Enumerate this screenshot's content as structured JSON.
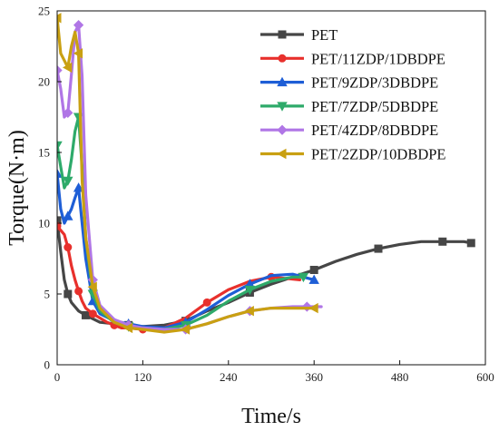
{
  "chart_data": {
    "type": "line",
    "xlabel": "Time/s",
    "ylabel": "Torque(N·m)",
    "xlim": [
      0,
      600
    ],
    "ylim": [
      0,
      25
    ],
    "xticks": [
      0,
      120,
      240,
      360,
      480,
      600
    ],
    "yticks": [
      0,
      5,
      10,
      15,
      20,
      25
    ],
    "grid": false,
    "legend": "top-right",
    "series": [
      {
        "name": "PET",
        "color": "#464646",
        "marker": "square",
        "x": [
          0,
          5,
          10,
          15,
          20,
          30,
          40,
          60,
          80,
          100,
          120,
          150,
          180,
          210,
          240,
          270,
          300,
          330,
          360,
          390,
          420,
          450,
          480,
          510,
          540,
          560,
          570,
          580
        ],
        "y": [
          10.2,
          8.0,
          6.0,
          5.0,
          4.4,
          3.8,
          3.5,
          3.0,
          2.9,
          2.8,
          2.7,
          2.8,
          3.1,
          3.8,
          4.4,
          5.1,
          5.7,
          6.2,
          6.7,
          7.3,
          7.8,
          8.2,
          8.5,
          8.7,
          8.7,
          8.7,
          8.7,
          8.6
        ]
      },
      {
        "name": "PET/11ZDP/1DBDPE",
        "color": "#e8302c",
        "marker": "circle",
        "x": [
          0,
          5,
          10,
          15,
          20,
          25,
          30,
          35,
          40,
          50,
          60,
          70,
          80,
          90,
          100,
          120,
          150,
          180,
          210,
          240,
          270,
          300,
          320,
          340
        ],
        "y": [
          9.8,
          9.5,
          9.2,
          8.3,
          7.0,
          6.0,
          5.2,
          4.5,
          4.0,
          3.6,
          3.3,
          3.0,
          2.8,
          2.6,
          2.6,
          2.5,
          2.6,
          3.3,
          4.4,
          5.3,
          5.9,
          6.2,
          6.1,
          6.0
        ]
      },
      {
        "name": "PET/9ZDP/3DBDPE",
        "color": "#1e5ed6",
        "marker": "triangle-up",
        "x": [
          0,
          5,
          10,
          15,
          20,
          25,
          30,
          35,
          40,
          50,
          60,
          80,
          100,
          120,
          150,
          180,
          210,
          240,
          270,
          300,
          330,
          360
        ],
        "y": [
          13.5,
          11.0,
          10.0,
          10.5,
          11.0,
          11.8,
          12.5,
          10.0,
          7.5,
          4.5,
          3.6,
          3.1,
          2.9,
          2.7,
          2.6,
          3.0,
          3.9,
          4.9,
          5.7,
          6.3,
          6.4,
          6.0
        ]
      },
      {
        "name": "PET/7ZDP/5DBDPE",
        "color": "#2eaa6a",
        "marker": "triangle-down",
        "x": [
          0,
          5,
          10,
          15,
          20,
          25,
          30,
          35,
          40,
          50,
          60,
          80,
          100,
          120,
          150,
          180,
          210,
          240,
          270,
          300,
          330,
          345
        ],
        "y": [
          15.5,
          14.0,
          12.5,
          13.0,
          14.5,
          16.5,
          17.5,
          14.0,
          9.0,
          5.0,
          3.8,
          3.0,
          2.7,
          2.6,
          2.5,
          2.8,
          3.5,
          4.5,
          5.3,
          5.9,
          6.2,
          6.2
        ]
      },
      {
        "name": "PET/4ZDP/8DBDPE",
        "color": "#b076e6",
        "marker": "diamond",
        "x": [
          0,
          5,
          10,
          15,
          20,
          25,
          30,
          35,
          40,
          50,
          60,
          80,
          100,
          120,
          150,
          180,
          210,
          240,
          270,
          300,
          330,
          350,
          370
        ],
        "y": [
          20.8,
          19.5,
          17.5,
          17.8,
          20.5,
          23.5,
          24.0,
          20.4,
          12.0,
          6.0,
          4.2,
          3.2,
          2.8,
          2.6,
          2.5,
          2.5,
          2.9,
          3.4,
          3.8,
          4.0,
          4.1,
          4.1,
          4.1
        ]
      },
      {
        "name": "PET/2ZDP/10DBDPE",
        "color": "#c9a012",
        "marker": "triangle-left",
        "x": [
          0,
          5,
          10,
          15,
          20,
          25,
          30,
          35,
          40,
          50,
          60,
          80,
          100,
          120,
          150,
          180,
          210,
          240,
          270,
          300,
          330,
          360
        ],
        "y": [
          24.5,
          22.0,
          21.5,
          21.0,
          22.5,
          23.5,
          22.0,
          13.0,
          9.0,
          5.5,
          4.0,
          3.0,
          2.6,
          2.5,
          2.3,
          2.5,
          2.9,
          3.4,
          3.8,
          4.0,
          4.0,
          4.0
        ]
      }
    ]
  }
}
